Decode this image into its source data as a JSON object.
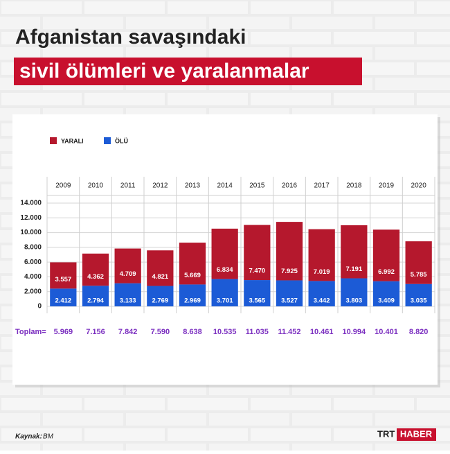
{
  "chart_data": {
    "type": "stacked-bar",
    "title": [
      "Afganistan savaşındaki",
      "sivil ölümleri ve yaralanmalar"
    ],
    "categories": [
      "2009",
      "2010",
      "2011",
      "2012",
      "2013",
      "2014",
      "2015",
      "2016",
      "2017",
      "2018",
      "2019",
      "2020"
    ],
    "series": [
      {
        "name": "ÖLÜ",
        "color": "#1c5bd6",
        "values": [
          2412,
          2794,
          3133,
          2769,
          2969,
          3701,
          3565,
          3527,
          3442,
          3803,
          3409,
          3035
        ],
        "value_labels": [
          "2.412",
          "2.794",
          "3.133",
          "2.769",
          "2.969",
          "3.701",
          "3.565",
          "3.527",
          "3.442",
          "3.803",
          "3.409",
          "3.035"
        ]
      },
      {
        "name": "YARALI",
        "color": "#b5182d",
        "values": [
          3557,
          4362,
          4709,
          4821,
          5669,
          6834,
          7470,
          7925,
          7019,
          7191,
          6992,
          5785
        ],
        "value_labels": [
          "3.557",
          "4.362",
          "4.709",
          "4.821",
          "5.669",
          "6.834",
          "7.470",
          "7.925",
          "7.019",
          "7.191",
          "6.992",
          "5.785"
        ]
      }
    ],
    "legend_order": [
      1,
      0
    ],
    "totals": {
      "label": "Toplam=",
      "color": "#7b2fc0",
      "values": [
        5969,
        7156,
        7842,
        7590,
        8638,
        10535,
        11035,
        11452,
        10461,
        10994,
        10401,
        8820
      ],
      "value_labels": [
        "5.969",
        "7.156",
        "7.842",
        "7.590",
        "8.638",
        "10.535",
        "11.035",
        "11.452",
        "10.461",
        "10.994",
        "10.401",
        "8.820"
      ]
    },
    "ylim": [
      0,
      14000
    ],
    "yticks": [
      0,
      {
        "value": 2000,
        "label": "2.000"
      },
      {
        "value": 4000,
        "label": "4.000"
      },
      {
        "value": 6000,
        "label": "6.000"
      },
      {
        "value": 8000,
        "label": "8.000"
      },
      {
        "value": 10000,
        "label": "10.000"
      },
      {
        "value": 12000,
        "label": "12.000"
      },
      {
        "value": 14000,
        "label": "14.000"
      }
    ],
    "grid": true,
    "source": {
      "label": "Kaynak:",
      "text": "BM"
    },
    "logo": [
      "TRT",
      "HABER"
    ]
  }
}
